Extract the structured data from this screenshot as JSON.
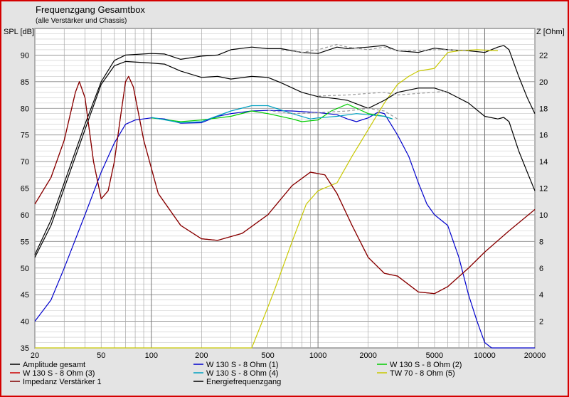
{
  "chart_data": {
    "type": "line",
    "title": "Frequenzgang Gesamtbox",
    "subtitle": "(alle Verstärker und Chassis)",
    "y_left_label": "SPL [dB]",
    "y_right_label": "Z [Ohm]",
    "x_scale": "log",
    "xlim": [
      20,
      20000
    ],
    "ylim_left": [
      35,
      95
    ],
    "ylim_right": [
      0,
      24
    ],
    "x_ticks": [
      20,
      50,
      100,
      200,
      500,
      1000,
      2000,
      5000,
      10000,
      20000
    ],
    "x_tick_labels": [
      "20",
      "50",
      "100",
      "200",
      "500",
      "1000",
      "2000",
      "5000",
      "10000",
      "20000"
    ],
    "y_left_ticks": [
      35,
      40,
      45,
      50,
      55,
      60,
      65,
      70,
      75,
      80,
      85,
      90
    ],
    "y_right_ticks": [
      2,
      4,
      6,
      8,
      10,
      12,
      14,
      16,
      18,
      20,
      22
    ],
    "grid": true,
    "series": [
      {
        "name": "Amplitude gesamt",
        "axis": "left",
        "color": "#000000",
        "points": [
          [
            20,
            52.5
          ],
          [
            25,
            59
          ],
          [
            30,
            66
          ],
          [
            40,
            77
          ],
          [
            50,
            85
          ],
          [
            60,
            89
          ],
          [
            70,
            90
          ],
          [
            100,
            90.3
          ],
          [
            120,
            90.2
          ],
          [
            150,
            89.2
          ],
          [
            200,
            89.8
          ],
          [
            250,
            90
          ],
          [
            300,
            91
          ],
          [
            400,
            91.5
          ],
          [
            500,
            91.2
          ],
          [
            600,
            91.2
          ],
          [
            800,
            90.5
          ],
          [
            1000,
            90.3
          ],
          [
            1300,
            91.5
          ],
          [
            1500,
            91.2
          ],
          [
            2000,
            91.5
          ],
          [
            2500,
            91.8
          ],
          [
            3000,
            90.8
          ],
          [
            4000,
            90.5
          ],
          [
            5000,
            91.3
          ],
          [
            6000,
            91
          ],
          [
            8000,
            90.8
          ],
          [
            10000,
            90.5
          ],
          [
            12000,
            91.5
          ],
          [
            13000,
            91.8
          ],
          [
            14000,
            91
          ],
          [
            16000,
            86
          ],
          [
            18000,
            82
          ],
          [
            20000,
            79
          ]
        ]
      },
      {
        "name": "W 130 S - 8 Ohm (1)",
        "axis": "left",
        "color": "#0000cc",
        "points": [
          [
            20,
            40
          ],
          [
            25,
            44
          ],
          [
            30,
            50
          ],
          [
            40,
            60
          ],
          [
            50,
            68
          ],
          [
            60,
            73.5
          ],
          [
            70,
            77
          ],
          [
            80,
            77.8
          ],
          [
            100,
            78.2
          ],
          [
            120,
            78
          ],
          [
            150,
            77.2
          ],
          [
            200,
            77.3
          ],
          [
            250,
            78.5
          ],
          [
            300,
            79
          ],
          [
            400,
            79.5
          ],
          [
            500,
            79.6
          ],
          [
            700,
            79.5
          ],
          [
            1000,
            79.2
          ],
          [
            1300,
            78.8
          ],
          [
            1500,
            78
          ],
          [
            1700,
            77.5
          ],
          [
            2000,
            78.2
          ],
          [
            2300,
            79.3
          ],
          [
            2500,
            79
          ],
          [
            3000,
            75
          ],
          [
            3500,
            71
          ],
          [
            4000,
            66
          ],
          [
            4500,
            62
          ],
          [
            5000,
            60
          ],
          [
            6000,
            58
          ],
          [
            7000,
            52
          ],
          [
            8000,
            45
          ],
          [
            9000,
            40
          ],
          [
            10000,
            36
          ],
          [
            11000,
            35
          ],
          [
            20000,
            35
          ]
        ]
      },
      {
        "name": "W 130 S - 8 Ohm (2)",
        "axis": "left",
        "color": "#00cc00",
        "points": [
          [
            100,
            78.2
          ],
          [
            150,
            77.5
          ],
          [
            200,
            77.8
          ],
          [
            300,
            78.5
          ],
          [
            400,
            79.5
          ],
          [
            500,
            79
          ],
          [
            700,
            78
          ],
          [
            800,
            77.5
          ],
          [
            1000,
            77.8
          ],
          [
            1200,
            79.5
          ],
          [
            1500,
            80.8
          ],
          [
            2000,
            79
          ],
          [
            2500,
            78.5
          ],
          [
            2800,
            78
          ]
        ]
      },
      {
        "name": "W 130 S - 8 Ohm (3)",
        "axis": "left",
        "color": "#cc0000",
        "points": [
          [
            20,
            62
          ],
          [
            25,
            67
          ],
          [
            30,
            74
          ],
          [
            35,
            83
          ],
          [
            37,
            85
          ],
          [
            40,
            82
          ],
          [
            45,
            70
          ],
          [
            50,
            63
          ],
          [
            55,
            64.5
          ],
          [
            60,
            70
          ],
          [
            65,
            78
          ],
          [
            70,
            85
          ],
          [
            73,
            86
          ],
          [
            78,
            84
          ],
          [
            90,
            74
          ],
          [
            110,
            64
          ],
          [
            150,
            58
          ],
          [
            200,
            55.5
          ],
          [
            250,
            55.2
          ],
          [
            350,
            56.5
          ],
          [
            500,
            60
          ],
          [
            700,
            65.5
          ],
          [
            900,
            68
          ],
          [
            1100,
            67.5
          ],
          [
            1300,
            64
          ],
          [
            1600,
            58
          ],
          [
            2000,
            52
          ],
          [
            2500,
            49
          ],
          [
            3000,
            48.5
          ],
          [
            4000,
            45.5
          ],
          [
            5000,
            45.2
          ],
          [
            6000,
            46.5
          ],
          [
            8000,
            50
          ],
          [
            10000,
            53
          ],
          [
            14000,
            57
          ],
          [
            20000,
            61
          ]
        ]
      },
      {
        "name": "W 130 S - 8 Ohm (4)",
        "axis": "left",
        "color": "#00a0c0",
        "points": [
          [
            100,
            78.3
          ],
          [
            150,
            77.3
          ],
          [
            200,
            77.5
          ],
          [
            300,
            79.5
          ],
          [
            400,
            80.5
          ],
          [
            500,
            80.5
          ],
          [
            700,
            79
          ],
          [
            900,
            78
          ],
          [
            1000,
            78.2
          ],
          [
            1300,
            78.5
          ],
          [
            1700,
            79
          ],
          [
            2000,
            78.8
          ],
          [
            2500,
            78.5
          ],
          [
            2800,
            78
          ]
        ]
      },
      {
        "name": "TW 70 - 8 Ohm (5)",
        "axis": "left",
        "color": "#c8c800",
        "points": [
          [
            20,
            35
          ],
          [
            300,
            35
          ],
          [
            400,
            35
          ],
          [
            450,
            39
          ],
          [
            550,
            46
          ],
          [
            700,
            55
          ],
          [
            850,
            62
          ],
          [
            1000,
            64.5
          ],
          [
            1300,
            66
          ],
          [
            1600,
            71
          ],
          [
            2000,
            76
          ],
          [
            2500,
            81
          ],
          [
            3000,
            84.5
          ],
          [
            3500,
            86
          ],
          [
            4000,
            87
          ],
          [
            5000,
            87.5
          ],
          [
            6000,
            90.5
          ],
          [
            7000,
            90.8
          ],
          [
            9000,
            91
          ],
          [
            12000,
            90.8
          ]
        ]
      },
      {
        "name": "Impedanz Verstärker 1",
        "axis": "left",
        "color": "#800000",
        "points": [
          [
            20,
            62
          ],
          [
            25,
            67
          ],
          [
            30,
            74
          ],
          [
            35,
            83
          ],
          [
            37,
            85
          ],
          [
            40,
            82
          ],
          [
            45,
            70
          ],
          [
            50,
            63
          ],
          [
            55,
            64.5
          ],
          [
            60,
            70
          ],
          [
            65,
            78
          ],
          [
            70,
            85
          ],
          [
            73,
            86
          ],
          [
            78,
            84
          ],
          [
            90,
            74
          ],
          [
            110,
            64
          ],
          [
            150,
            58
          ],
          [
            200,
            55.5
          ],
          [
            250,
            55.2
          ],
          [
            350,
            56.5
          ],
          [
            500,
            60
          ],
          [
            700,
            65.5
          ],
          [
            900,
            68
          ],
          [
            1100,
            67.5
          ],
          [
            1300,
            64
          ],
          [
            1600,
            58
          ],
          [
            2000,
            52
          ],
          [
            2500,
            49
          ],
          [
            3000,
            48.5
          ],
          [
            4000,
            45.5
          ],
          [
            5000,
            45.2
          ],
          [
            6000,
            46.5
          ],
          [
            8000,
            50
          ],
          [
            10000,
            53
          ],
          [
            14000,
            57
          ],
          [
            20000,
            61
          ]
        ]
      },
      {
        "name": "Energiefrequenzgang",
        "axis": "left",
        "color": "#000000",
        "points": [
          [
            20,
            52
          ],
          [
            25,
            58
          ],
          [
            30,
            65
          ],
          [
            40,
            76
          ],
          [
            50,
            84.5
          ],
          [
            60,
            88
          ],
          [
            70,
            88.8
          ],
          [
            100,
            88.5
          ],
          [
            120,
            88.3
          ],
          [
            150,
            87
          ],
          [
            200,
            85.8
          ],
          [
            250,
            86
          ],
          [
            300,
            85.5
          ],
          [
            400,
            86
          ],
          [
            500,
            85.8
          ],
          [
            600,
            84.8
          ],
          [
            800,
            83
          ],
          [
            1000,
            82.2
          ],
          [
            1300,
            81.8
          ],
          [
            1500,
            81.5
          ],
          [
            2000,
            80
          ],
          [
            2500,
            81.5
          ],
          [
            3000,
            83
          ],
          [
            4000,
            83.8
          ],
          [
            5000,
            83.8
          ],
          [
            6000,
            83
          ],
          [
            8000,
            81
          ],
          [
            10000,
            78.5
          ],
          [
            12000,
            78
          ],
          [
            13000,
            78.3
          ],
          [
            14000,
            77.5
          ],
          [
            16000,
            72
          ],
          [
            18000,
            68
          ],
          [
            20000,
            64.5
          ]
        ]
      },
      {
        "name": "",
        "axis": "left",
        "color": "#999999",
        "dashed": true,
        "points": [
          [
            500,
            79.6
          ],
          [
            700,
            79
          ],
          [
            1000,
            79.2
          ],
          [
            1500,
            79.5
          ],
          [
            2000,
            80
          ],
          [
            2500,
            79.5
          ],
          [
            3000,
            78
          ]
        ]
      },
      {
        "name": "",
        "axis": "left",
        "color": "#999999",
        "dashed": true,
        "points": [
          [
            1000,
            82.3
          ],
          [
            1500,
            82.5
          ],
          [
            2000,
            82.8
          ],
          [
            2500,
            83
          ],
          [
            3000,
            82.5
          ],
          [
            4000,
            82.8
          ],
          [
            5000,
            83
          ],
          [
            6000,
            83.3
          ]
        ]
      },
      {
        "name": "",
        "axis": "left",
        "color": "#999999",
        "dashed": true,
        "points": [
          [
            600,
            91
          ],
          [
            800,
            90.5
          ],
          [
            1000,
            91
          ],
          [
            1300,
            92
          ],
          [
            1500,
            91.5
          ],
          [
            2000,
            91
          ],
          [
            2500,
            91.5
          ],
          [
            3000,
            90.8
          ],
          [
            4000,
            90.8
          ],
          [
            5000,
            91
          ],
          [
            6000,
            91
          ],
          [
            8000,
            90.8
          ]
        ]
      }
    ],
    "legend": [
      {
        "label": "Amplitude gesamt",
        "color": "#000000"
      },
      {
        "label": "W 130 S - 8 Ohm (1)",
        "color": "#0000cc"
      },
      {
        "label": "W 130 S - 8 Ohm (2)",
        "color": "#00cc00"
      },
      {
        "label": "W 130 S - 8 Ohm (3)",
        "color": "#cc0000"
      },
      {
        "label": "W 130 S - 8 Ohm (4)",
        "color": "#00a0c0"
      },
      {
        "label": "TW 70 - 8 Ohm (5)",
        "color": "#c8c800"
      },
      {
        "label": "Impedanz Verstärker 1",
        "color": "#800000"
      },
      {
        "label": "Energiefrequenzgang",
        "color": "#000000"
      }
    ],
    "legend_placement": "bottom"
  }
}
